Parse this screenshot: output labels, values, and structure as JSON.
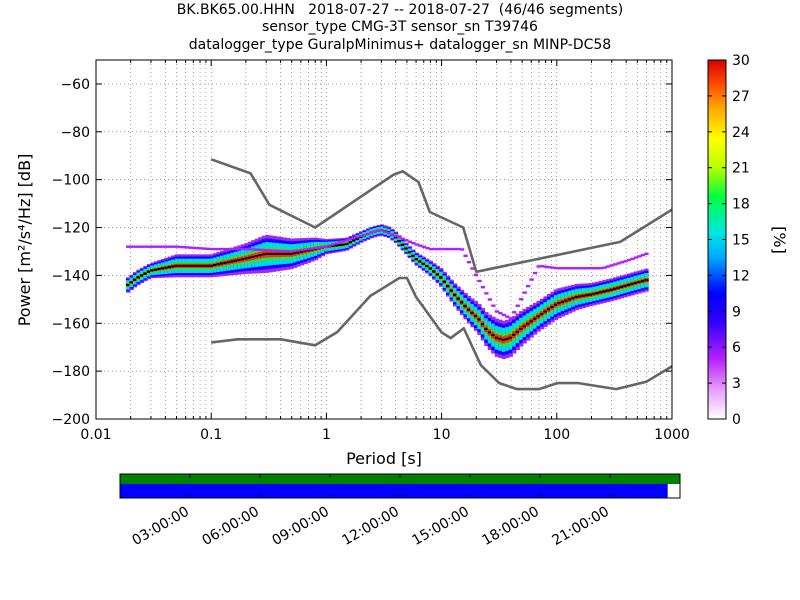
{
  "title": {
    "line1": "BK.BK65.00.HHN   2018-07-27 -- 2018-07-27  (46/46 segments)",
    "line2": "sensor_type CMG-3T sensor_sn T39746",
    "line3": "datalogger_type GuralpMinimus+ datalogger_sn MINP-DC58"
  },
  "chart_data": {
    "type": "heatmap",
    "x_scale": "log",
    "xlim": [
      0.01,
      1000
    ],
    "ylim": [
      -200,
      -50
    ],
    "xlabel": "Period [s]",
    "ylabel": "Power [m²/s⁴/Hz] [dB]",
    "x_ticks": [
      0.01,
      0.1,
      1,
      10,
      100,
      1000
    ],
    "x_tick_labels": [
      "0.01",
      "0.1",
      "1",
      "10",
      "100",
      "1000"
    ],
    "y_ticks": [
      -200,
      -180,
      -160,
      -140,
      -120,
      -100,
      -80,
      -60
    ],
    "y_tick_labels": [
      "−200",
      "−180",
      "−160",
      "−140",
      "−120",
      "−100",
      "−80",
      "−60"
    ],
    "grid": "dotted, major and minor",
    "colorbar": {
      "label": "[%]",
      "range": [
        0,
        30
      ],
      "ticks": [
        "0",
        "3",
        "6",
        "9",
        "12",
        "15",
        "18",
        "21",
        "24",
        "27",
        "30"
      ],
      "colormap": [
        "#ffffff",
        "#b31ffe",
        "#0000ff",
        "#00c8ff",
        "#00ff3c",
        "#ffff00",
        "#ff8800",
        "#e10000"
      ]
    },
    "nhnm": [
      [
        0.1,
        -91.5
      ],
      [
        0.22,
        -97.4
      ],
      [
        0.32,
        -110.5
      ],
      [
        0.8,
        -120.0
      ],
      [
        3.8,
        -98.0
      ],
      [
        4.6,
        -96.5
      ],
      [
        6.3,
        -101.0
      ],
      [
        7.9,
        -113.5
      ],
      [
        15.4,
        -120.0
      ],
      [
        20.0,
        -138.5
      ],
      [
        354.8,
        -126.0
      ],
      [
        1000,
        -112.5
      ]
    ],
    "nlnm": [
      [
        0.1,
        -168.0
      ],
      [
        0.17,
        -166.7
      ],
      [
        0.4,
        -166.7
      ],
      [
        0.8,
        -169.2
      ],
      [
        1.24,
        -163.7
      ],
      [
        2.4,
        -148.6
      ],
      [
        4.3,
        -141.1
      ],
      [
        5.0,
        -141.1
      ],
      [
        6.0,
        -149.0
      ],
      [
        10.0,
        -163.8
      ],
      [
        12.0,
        -166.2
      ],
      [
        15.6,
        -162.1
      ],
      [
        21.9,
        -177.5
      ],
      [
        31.6,
        -185.0
      ],
      [
        45.0,
        -187.5
      ],
      [
        70.0,
        -187.5
      ],
      [
        101.0,
        -185.0
      ],
      [
        154.0,
        -185.0
      ],
      [
        328.0,
        -187.5
      ],
      [
        600.0,
        -184.4
      ],
      [
        1000,
        -178.0
      ]
    ],
    "psd_center": [
      [
        0.019,
        -144
      ],
      [
        0.023,
        -141
      ],
      [
        0.03,
        -138
      ],
      [
        0.05,
        -136
      ],
      [
        0.1,
        -136
      ],
      [
        0.2,
        -133
      ],
      [
        0.3,
        -131
      ],
      [
        0.5,
        -131
      ],
      [
        0.8,
        -129
      ],
      [
        1.0,
        -128
      ],
      [
        1.5,
        -127
      ],
      [
        2.0,
        -124
      ],
      [
        2.5,
        -122
      ],
      [
        3.0,
        -121
      ],
      [
        3.5,
        -122
      ],
      [
        4.0,
        -124
      ],
      [
        5.0,
        -129
      ],
      [
        6.0,
        -133
      ],
      [
        8.0,
        -137
      ],
      [
        10.0,
        -141
      ],
      [
        13.0,
        -148
      ],
      [
        17.0,
        -154
      ],
      [
        21.0,
        -158
      ],
      [
        25.0,
        -163
      ],
      [
        30.0,
        -166
      ],
      [
        35.0,
        -167
      ],
      [
        40.0,
        -166
      ],
      [
        50.0,
        -162
      ],
      [
        70.0,
        -157
      ],
      [
        100.0,
        -152
      ],
      [
        150.0,
        -149
      ],
      [
        200.0,
        -148
      ],
      [
        300.0,
        -146
      ],
      [
        500.0,
        -143
      ],
      [
        600.0,
        -142
      ]
    ],
    "psd_spread": [
      [
        0.019,
        2
      ],
      [
        0.03,
        2
      ],
      [
        0.05,
        3
      ],
      [
        0.1,
        3
      ],
      [
        0.2,
        4
      ],
      [
        0.3,
        5
      ],
      [
        0.5,
        4
      ],
      [
        0.8,
        3
      ],
      [
        1.0,
        2
      ],
      [
        2.0,
        1.5
      ],
      [
        3.0,
        1.5
      ],
      [
        5.0,
        1.5
      ],
      [
        8.0,
        2
      ],
      [
        13.0,
        3
      ],
      [
        21.0,
        4
      ],
      [
        30.0,
        5
      ],
      [
        40.0,
        5
      ],
      [
        70.0,
        4
      ],
      [
        100.0,
        4
      ],
      [
        200.0,
        3
      ],
      [
        600.0,
        3
      ]
    ],
    "psd_upper_outlier": [
      [
        0.019,
        -128
      ],
      [
        0.05,
        -128
      ],
      [
        0.1,
        -129
      ],
      [
        0.2,
        -129
      ],
      [
        0.5,
        -130
      ],
      [
        1.0,
        -128
      ],
      [
        3.0,
        -121
      ],
      [
        6.0,
        -127
      ],
      [
        8.0,
        -129
      ],
      [
        15.0,
        -129
      ],
      [
        20.0,
        -140
      ],
      [
        30.0,
        -155
      ],
      [
        40.0,
        -158
      ],
      [
        70.0,
        -136
      ],
      [
        100.0,
        -137
      ],
      [
        150.0,
        -137
      ],
      [
        250.0,
        -137
      ],
      [
        400.0,
        -134
      ],
      [
        600.0,
        -131
      ]
    ],
    "timeline": {
      "tick_labels": [
        "03:00:00",
        "06:00:00",
        "09:00:00",
        "12:00:00",
        "15:00:00",
        "18:00:00",
        "21:00:00"
      ],
      "data_fraction": 0.978,
      "available_color": "#008000",
      "psd_color": "#0000ff"
    }
  }
}
